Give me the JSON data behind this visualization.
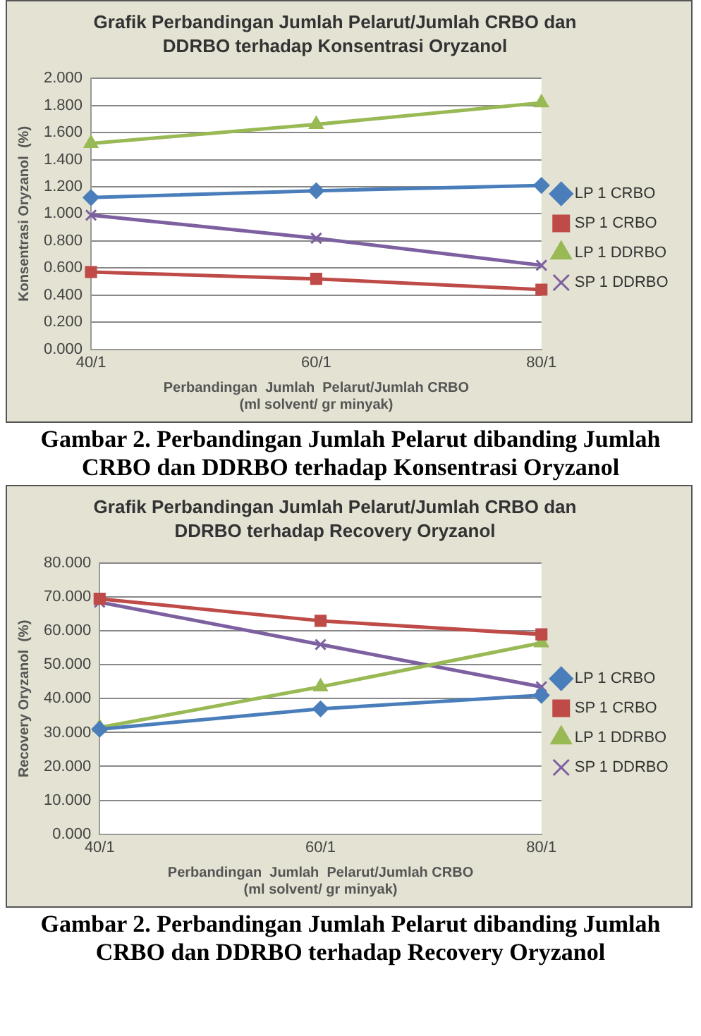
{
  "chart_data": [
    {
      "type": "line",
      "title": "Grafik Perbandingan Jumlah Pelarut/Jumlah  CRBO dan DDRBO terhadap Konsentrasi Oryzanol",
      "xlabel": "Perbandingan  Jumlah  Pelarut/Jumlah CRBO\n(ml solvent/ gr minyak)",
      "ylabel": "Konsentrasi Oryzanol  (%)",
      "categories": [
        "40/1",
        "60/1",
        "80/1"
      ],
      "series": [
        {
          "name": "LP 1 CRBO",
          "color": "#4a7ebb",
          "marker": "diamond",
          "values": [
            1.12,
            1.17,
            1.21
          ]
        },
        {
          "name": "SP 1 CRBO",
          "color": "#be4b48",
          "marker": "square",
          "values": [
            0.57,
            0.52,
            0.44
          ]
        },
        {
          "name": "LP 1 DDRBO",
          "color": "#98b954",
          "marker": "triangle",
          "values": [
            1.52,
            1.66,
            1.82
          ]
        },
        {
          "name": "SP 1 DDRBO",
          "color": "#7d60a0",
          "marker": "cross",
          "values": [
            0.99,
            0.82,
            0.62
          ]
        }
      ],
      "ylim": [
        0,
        2
      ],
      "yticks": [
        {
          "value": 0,
          "label": "0.000"
        },
        {
          "value": 0.2,
          "label": "0.200"
        },
        {
          "value": 0.4,
          "label": "0.400"
        },
        {
          "value": 0.6,
          "label": "0.600"
        },
        {
          "value": 0.8,
          "label": "0.800"
        },
        {
          "value": 1,
          "label": "1.000"
        },
        {
          "value": 1.2,
          "label": "1.200"
        },
        {
          "value": 1.4,
          "label": "1.400"
        },
        {
          "value": 1.6,
          "label": "1.600"
        },
        {
          "value": 1.8,
          "label": "1.800"
        },
        {
          "value": 2,
          "label": "2.000"
        }
      ],
      "grid": "y",
      "legend": "right",
      "line_style": "solid",
      "annotations": [
        "Gambar 2. Perbandingan Jumlah Pelarut dibanding Jumlah CRBO dan DDRBO terhadap Konsentrasi Oryzanol"
      ]
    },
    {
      "type": "line",
      "title": "Grafik Perbandingan Jumlah Pelarut/Jumlah  CRBO dan DDRBO terhadap Recovery Oryzanol",
      "xlabel": "Perbandingan  Jumlah  Pelarut/Jumlah CRBO\n(ml solvent/ gr minyak)",
      "ylabel": "Recovery Oryzanol  (%)",
      "categories": [
        "40/1",
        "60/1",
        "80/1"
      ],
      "series": [
        {
          "name": "LP 1 CRBO",
          "color": "#4a7ebb",
          "marker": "diamond",
          "values": [
            31,
            37,
            41
          ]
        },
        {
          "name": "SP 1 CRBO",
          "color": "#be4b48",
          "marker": "square",
          "values": [
            69.5,
            63,
            59
          ]
        },
        {
          "name": "LP 1 DDRBO",
          "color": "#98b954",
          "marker": "triangle",
          "values": [
            31.5,
            43.5,
            56.5
          ]
        },
        {
          "name": "SP 1 DDRBO",
          "color": "#7d60a0",
          "marker": "cross",
          "values": [
            68.5,
            56,
            43.5
          ]
        }
      ],
      "ylim": [
        0,
        80
      ],
      "yticks": [
        {
          "value": 0,
          "label": "0.000"
        },
        {
          "value": 10,
          "label": "10.000"
        },
        {
          "value": 20,
          "label": "20.000"
        },
        {
          "value": 30,
          "label": "30.000"
        },
        {
          "value": 40,
          "label": "40.000"
        },
        {
          "value": 50,
          "label": "50.000"
        },
        {
          "value": 60,
          "label": "60.000"
        },
        {
          "value": 70,
          "label": "70.000"
        },
        {
          "value": 80,
          "label": "80.000"
        }
      ],
      "grid": "y",
      "legend": "right",
      "line_style": "solid",
      "annotations": [
        "Gambar 2. Perbandingan Jumlah Pelarut dibanding Jumlah CRBO dan DDRBO terhadap Recovery Oryzanol"
      ]
    }
  ]
}
